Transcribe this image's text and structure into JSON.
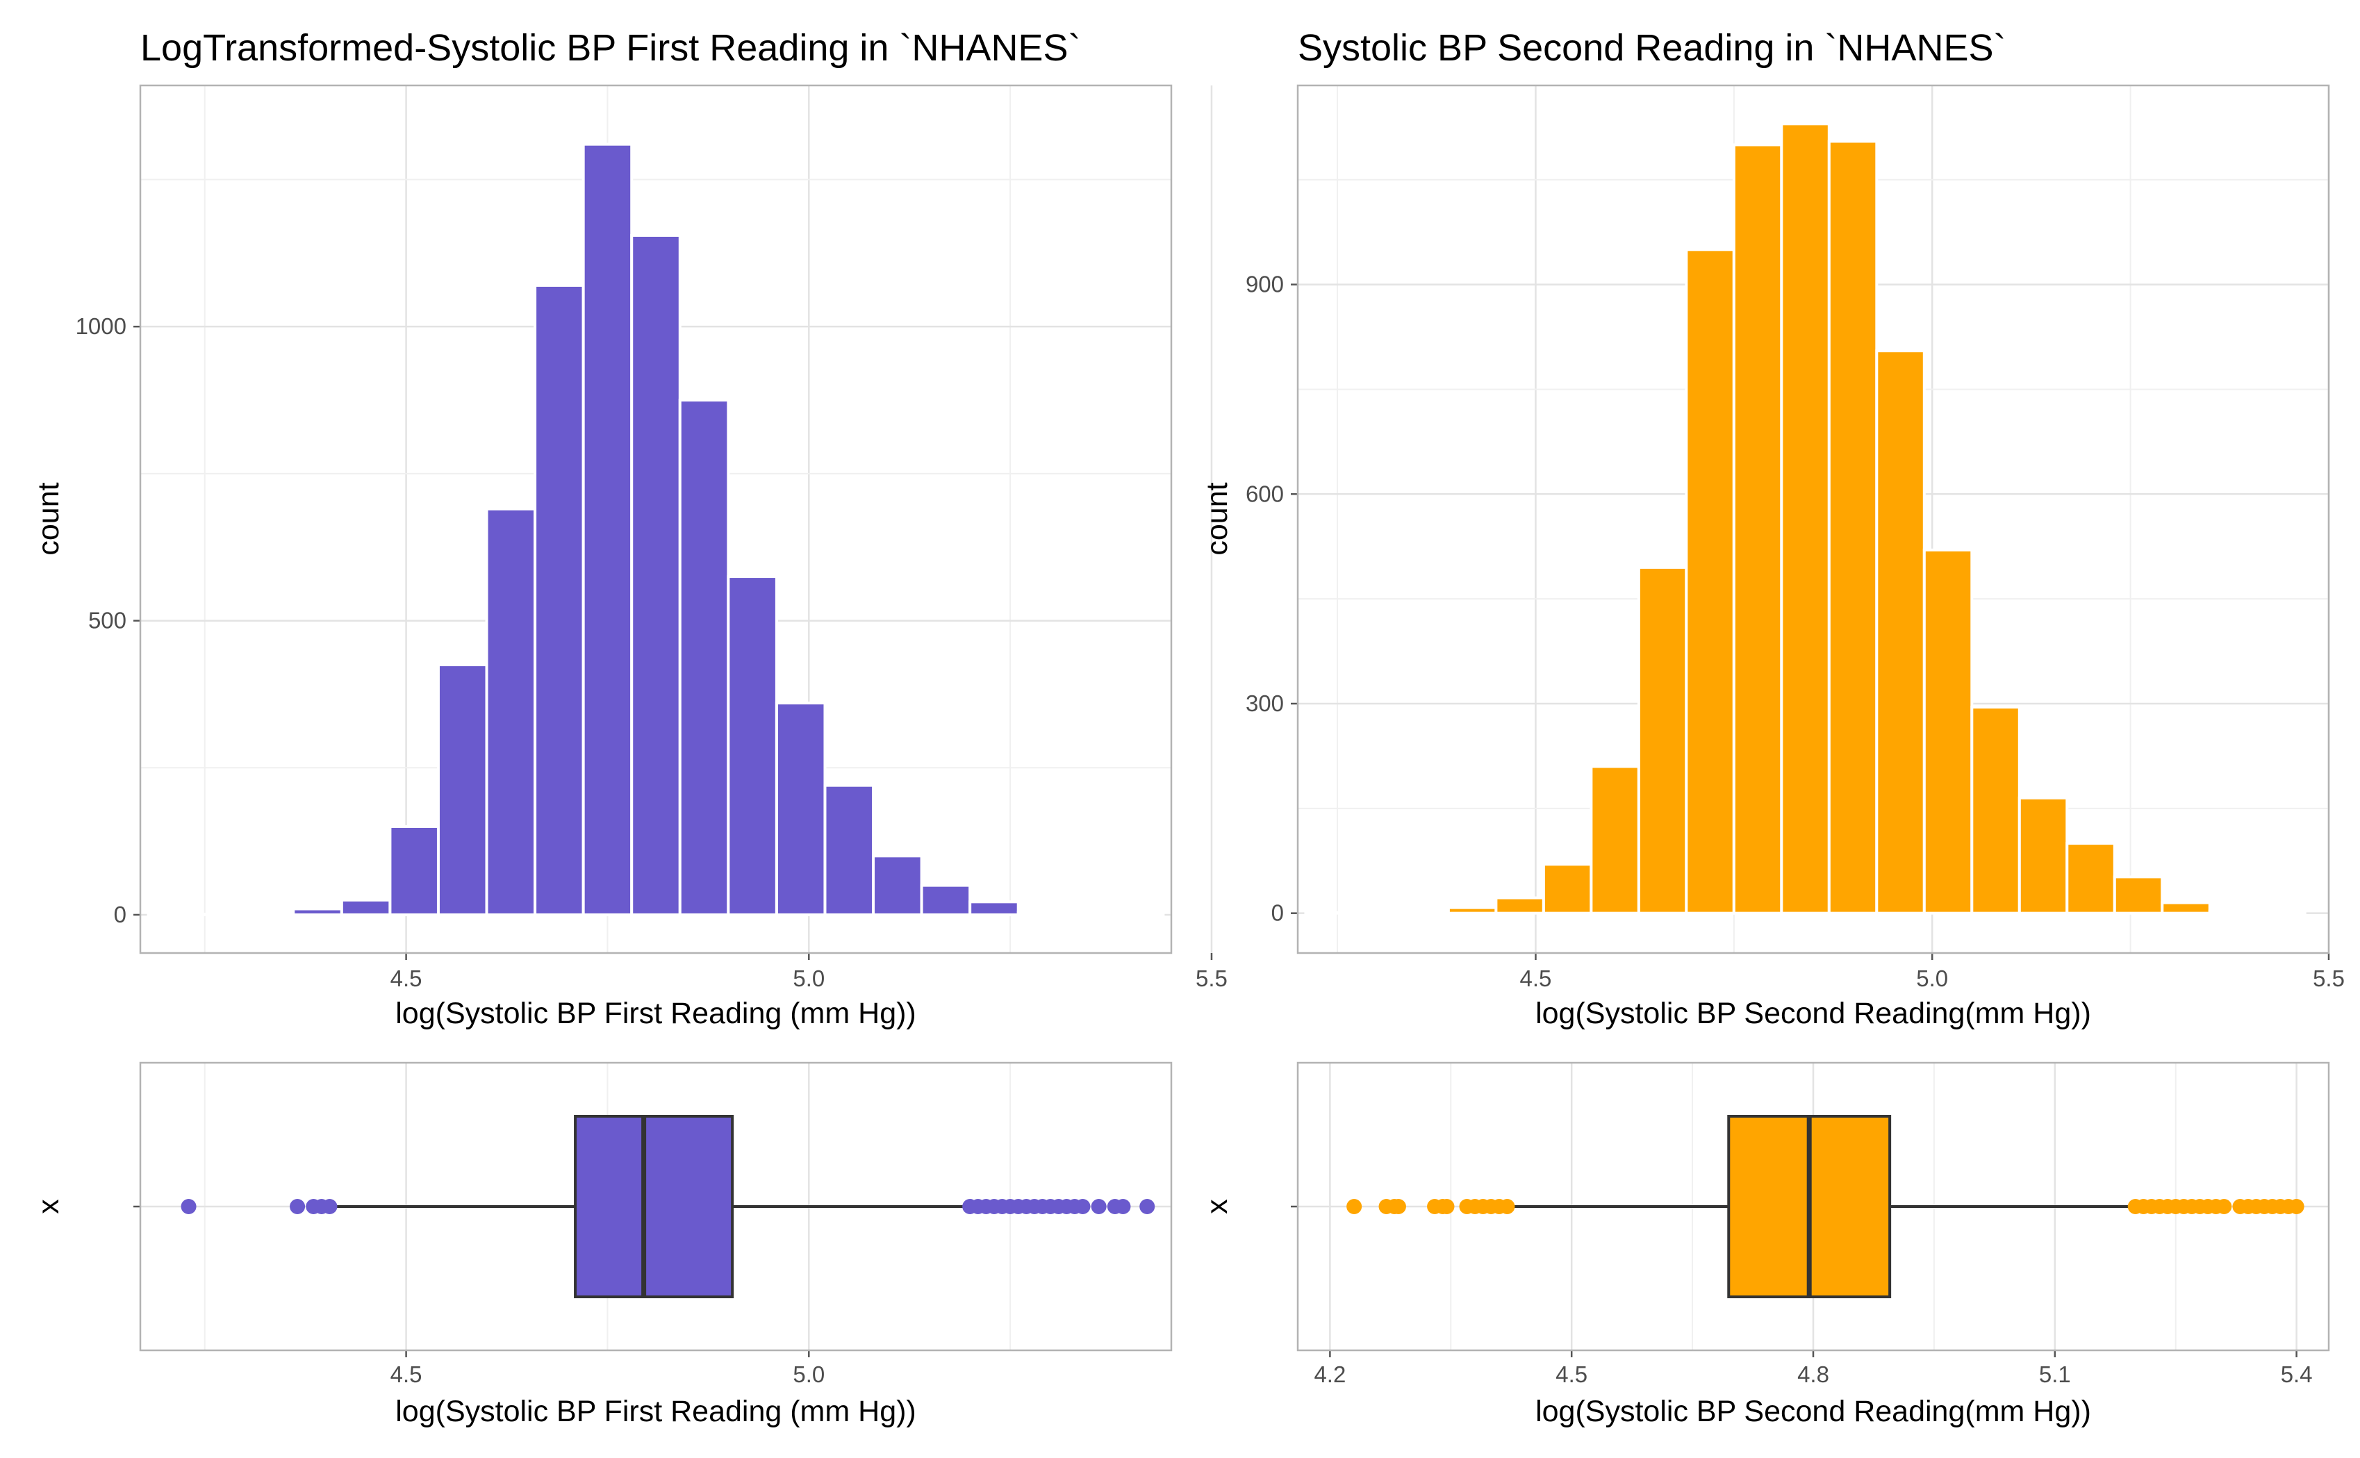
{
  "chart_data": [
    {
      "type": "bar",
      "chart": "histogram",
      "title": "LogTransformed-Systolic BP First Reading in `NHANES`",
      "xlabel": "log(Systolic BP First Reading (mm Hg))",
      "ylabel": "count",
      "xlim": [
        4.17,
        5.45
      ],
      "ylim": [
        -65,
        1410
      ],
      "xticks": [
        4.5,
        5.0,
        5.5
      ],
      "xtick_labels": [
        "4.5",
        "5.0",
        "5.5"
      ],
      "yticks": [
        0,
        500,
        1000
      ],
      "ytick_labels": [
        "0",
        "500",
        "1000"
      ],
      "bin_width": 0.06,
      "bin_start": 4.18,
      "counts": [
        0,
        0,
        0,
        10,
        25,
        150,
        425,
        690,
        1070,
        1310,
        1155,
        875,
        575,
        360,
        220,
        100,
        50,
        22,
        4,
        0,
        0
      ],
      "fill": "#6a5acd",
      "grid": true,
      "legend": "none"
    },
    {
      "type": "bar",
      "chart": "histogram",
      "title": "Systolic BP Second Reading in `NHANES`",
      "xlabel": "log(Systolic BP Second Reading(mm Hg))",
      "ylabel": "count",
      "xlim": [
        4.2,
        5.5
      ],
      "ylim": [
        -57,
        1185
      ],
      "xticks": [
        4.5,
        5.0,
        5.5
      ],
      "xtick_labels": [
        "4.5",
        "5.0",
        "5.5"
      ],
      "yticks": [
        0,
        300,
        600,
        900
      ],
      "ytick_labels": [
        "0",
        "300",
        "600",
        "900"
      ],
      "bin_width": 0.06,
      "bin_start": 4.21,
      "counts": [
        0,
        0,
        0,
        8,
        22,
        70,
        210,
        495,
        950,
        1100,
        1130,
        1105,
        805,
        520,
        295,
        165,
        100,
        52,
        15,
        3,
        0
      ],
      "fill": "#ffa500",
      "grid": true,
      "legend": "none"
    },
    {
      "type": "boxplot",
      "xlabel": "log(Systolic BP First Reading (mm Hg))",
      "ylabel": "x",
      "xlim": [
        4.17,
        5.45
      ],
      "xticks": [
        4.5,
        5.0
      ],
      "xtick_labels": [
        "4.5",
        "5.0"
      ],
      "q1": 4.71,
      "median": 4.795,
      "q3": 4.905,
      "whisker_low": 4.405,
      "whisker_high": 5.205,
      "outliers": [
        4.23,
        4.365,
        4.385,
        4.395,
        4.405,
        5.2,
        5.21,
        5.22,
        5.23,
        5.24,
        5.25,
        5.26,
        5.27,
        5.28,
        5.29,
        5.3,
        5.31,
        5.32,
        5.33,
        5.34,
        5.36,
        5.38,
        5.39,
        5.42
      ],
      "fill": "#6a5acd",
      "grid": true
    },
    {
      "type": "boxplot",
      "xlabel": "log(Systolic BP Second Reading(mm Hg))",
      "ylabel": "x",
      "xlim": [
        4.16,
        5.44
      ],
      "xticks": [
        4.2,
        4.5,
        4.8,
        5.1,
        5.4
      ],
      "xtick_labels": [
        "4.2",
        "4.5",
        "4.8",
        "5.1",
        "5.4"
      ],
      "q1": 4.695,
      "median": 4.795,
      "q3": 4.895,
      "whisker_low": 4.42,
      "whisker_high": 5.195,
      "outliers": [
        4.23,
        4.27,
        4.28,
        4.285,
        4.33,
        4.34,
        4.345,
        4.37,
        4.38,
        4.39,
        4.4,
        4.41,
        4.42,
        5.2,
        5.21,
        5.22,
        5.23,
        5.24,
        5.25,
        5.26,
        5.27,
        5.28,
        5.29,
        5.3,
        5.31,
        5.33,
        5.34,
        5.35,
        5.36,
        5.37,
        5.38,
        5.39,
        5.4
      ],
      "fill": "#ffa500",
      "grid": true
    }
  ]
}
